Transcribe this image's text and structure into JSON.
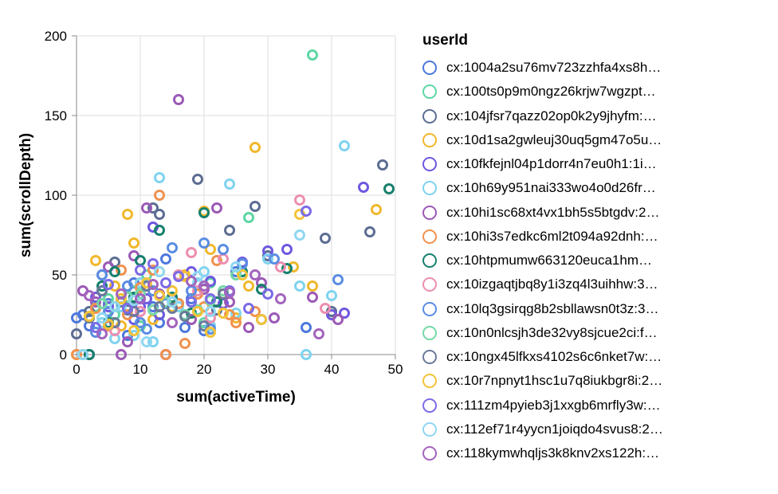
{
  "chart_data": {
    "type": "scatter",
    "title": "",
    "xlabel": "sum(activeTime)",
    "ylabel": "sum(scrollDepth)",
    "xlim": [
      0,
      50
    ],
    "ylim": [
      0,
      200
    ],
    "x_ticks": [
      "0",
      "10",
      "20",
      "30",
      "40",
      "50"
    ],
    "y_ticks": [
      "0",
      "50",
      "100",
      "150",
      "200"
    ],
    "grid": true,
    "legend": {
      "title": "userId",
      "placement": "right"
    },
    "series": [
      {
        "name": "cx:1004a2su76mv723zzhfa4xs8h…",
        "color": "#4c78dd",
        "x": [
          0,
          1,
          2,
          3,
          4,
          5,
          6,
          8,
          9,
          12,
          13,
          14,
          17,
          18,
          20,
          25,
          29,
          36
        ],
        "y": [
          23,
          25,
          18,
          30,
          50,
          32,
          20,
          12,
          45,
          30,
          20,
          60,
          17,
          35,
          15,
          52,
          22,
          17
        ]
      },
      {
        "name": "cx:100ts0p9m0ngz26krjw7wgzpt…",
        "color": "#5dd6a4",
        "x": [
          1,
          3,
          5,
          6,
          7,
          9,
          10,
          11,
          13,
          20,
          21,
          27,
          37
        ],
        "y": [
          0,
          30,
          35,
          25,
          35,
          40,
          18,
          50,
          25,
          20,
          45,
          86,
          188
        ]
      },
      {
        "name": "cx:104jfsr7qazz02op0k2y9jhyfm:…",
        "color": "#5c6d93",
        "x": [
          0,
          2,
          4,
          6,
          8,
          9,
          12,
          13,
          16,
          19,
          22,
          24,
          28,
          30,
          39,
          40,
          46,
          48
        ],
        "y": [
          13,
          27,
          40,
          58,
          28,
          35,
          92,
          88,
          32,
          110,
          28,
          78,
          93,
          62,
          73,
          27,
          77,
          119
        ]
      },
      {
        "name": "cx:10d1sa2gwleuj30uq5gm47o5u…",
        "color": "#f1b82d",
        "x": [
          0,
          3,
          6,
          7,
          8,
          9,
          10,
          12,
          13,
          15,
          17,
          20,
          21,
          23,
          25,
          27,
          28,
          34,
          37,
          47
        ],
        "y": [
          0,
          59,
          43,
          18,
          88,
          70,
          45,
          22,
          52,
          30,
          50,
          90,
          66,
          38,
          23,
          43,
          130,
          55,
          43,
          91
        ]
      },
      {
        "name": "cx:10fkfejnl04p1dorr4n7eu0h1:1i…",
        "color": "#6f58e0",
        "x": [
          2,
          3,
          5,
          7,
          9,
          10,
          11,
          12,
          13,
          14,
          15,
          18,
          21,
          23,
          26,
          30,
          33,
          40,
          42,
          45
        ],
        "y": [
          0,
          36,
          30,
          33,
          22,
          30,
          35,
          80,
          25,
          0,
          35,
          52,
          46,
          32,
          58,
          65,
          66,
          25,
          26,
          105
        ]
      },
      {
        "name": "cx:10h69y951nai333wo4o0d26fr…",
        "color": "#7fd3f0",
        "x": [
          4,
          6,
          7,
          9,
          10,
          12,
          13,
          16,
          19,
          20,
          21,
          24,
          25,
          30,
          35,
          36,
          40,
          42
        ],
        "y": [
          20,
          10,
          30,
          12,
          45,
          8,
          111,
          30,
          45,
          52,
          18,
          107,
          26,
          60,
          43,
          0,
          37,
          131
        ]
      },
      {
        "name": "cx:10hi1sc68xt4vx1bh5s5btgdv:2…",
        "color": "#9b59b6",
        "x": [
          1,
          2,
          3,
          5,
          7,
          8,
          9,
          11,
          13,
          14,
          16,
          18,
          20,
          22,
          24,
          27,
          29,
          31,
          37,
          41
        ],
        "y": [
          40,
          0,
          33,
          55,
          0,
          8,
          62,
          92,
          38,
          0,
          160,
          22,
          41,
          92,
          33,
          17,
          45,
          23,
          36,
          22
        ]
      },
      {
        "name": "cx:10hi3s7edkc6ml2t094a92dnh:…",
        "color": "#f0924f",
        "x": [
          0,
          3,
          5,
          7,
          8,
          10,
          12,
          13,
          14,
          16,
          17,
          19,
          20,
          22,
          24,
          25,
          28
        ],
        "y": [
          0,
          29,
          18,
          53,
          25,
          42,
          53,
          100,
          0,
          32,
          7,
          38,
          30,
          59,
          25,
          20,
          27
        ]
      },
      {
        "name": "cx:10htpmumw663120euca1hm…",
        "color": "#16806d",
        "x": [
          2,
          4,
          5,
          6,
          9,
          10,
          13,
          15,
          18,
          20,
          22,
          26,
          29,
          33,
          49
        ],
        "y": [
          0,
          43,
          20,
          52,
          36,
          59,
          78,
          36,
          26,
          89,
          33,
          52,
          41,
          54,
          104
        ]
      },
      {
        "name": "cx:10izgaqtjbq8y1i3zq4l3uihhw:3…",
        "color": "#ec8eb0",
        "x": [
          6,
          10,
          16,
          18,
          19,
          21,
          23,
          32,
          35,
          39
        ],
        "y": [
          15,
          27,
          50,
          64,
          40,
          23,
          60,
          55,
          97,
          29
        ]
      },
      {
        "name": "cx:10lq3gsirqg8b2sbllawsn0t3z:3…",
        "color": "#5b8de2",
        "x": [
          3,
          4,
          5,
          8,
          10,
          11,
          12,
          14,
          15,
          18,
          20,
          21,
          23,
          26,
          31,
          41
        ],
        "y": [
          14,
          50,
          27,
          43,
          20,
          16,
          40,
          32,
          67,
          40,
          70,
          16,
          66,
          57,
          60,
          47
        ]
      },
      {
        "name": "cx:10n0nlcsjh3de32vy8sjcue2ci:f…",
        "color": "#74d8a8",
        "x": [
          4,
          6,
          8,
          10,
          12,
          14,
          17,
          19,
          21,
          23,
          25
        ],
        "y": [
          32,
          30,
          36,
          38,
          28,
          33,
          25,
          28,
          34,
          40,
          50
        ]
      },
      {
        "name": "cx:10ngx45lfkxs4102s6c6nket7w:…",
        "color": "#6b7a9a",
        "x": [
          2,
          4,
          6,
          7,
          9,
          11,
          13,
          15,
          17,
          20,
          23
        ],
        "y": [
          23,
          40,
          20,
          33,
          27,
          43,
          30,
          29,
          24,
          18,
          38
        ]
      },
      {
        "name": "cx:10r7npnyt1hsc1u7q8iukbgr8i:2…",
        "color": "#f3c338",
        "x": [
          2,
          5,
          7,
          9,
          11,
          13,
          15,
          17,
          19,
          21,
          23,
          26,
          29,
          35
        ],
        "y": [
          24,
          19,
          35,
          15,
          45,
          37,
          40,
          49,
          27,
          14,
          26,
          50,
          22,
          88
        ]
      },
      {
        "name": "cx:111zm4pyieb3j1xxgb6mrfly3w:…",
        "color": "#7b6be6",
        "x": [
          3,
          5,
          8,
          10,
          12,
          14,
          16,
          18,
          21,
          24,
          27,
          30,
          36
        ],
        "y": [
          17,
          44,
          29,
          53,
          57,
          45,
          49,
          33,
          35,
          40,
          29,
          38,
          90
        ]
      },
      {
        "name": "cx:112ef71r4yycn1joiqdo4svus8:2…",
        "color": "#8fd7f2",
        "x": [
          1,
          4,
          6,
          9,
          11,
          13,
          15,
          19,
          21,
          25,
          35
        ],
        "y": [
          0,
          23,
          30,
          34,
          8,
          52,
          33,
          49,
          27,
          55,
          75
        ]
      },
      {
        "name": "cx:118kymwhqljs3k8knv2xs122h:…",
        "color": "#a364bd",
        "x": [
          2,
          4,
          7,
          10,
          12,
          15,
          18,
          20,
          24,
          28,
          32,
          38
        ],
        "y": [
          37,
          13,
          38,
          35,
          44,
          20,
          46,
          43,
          39,
          50,
          35,
          13
        ]
      }
    ]
  }
}
